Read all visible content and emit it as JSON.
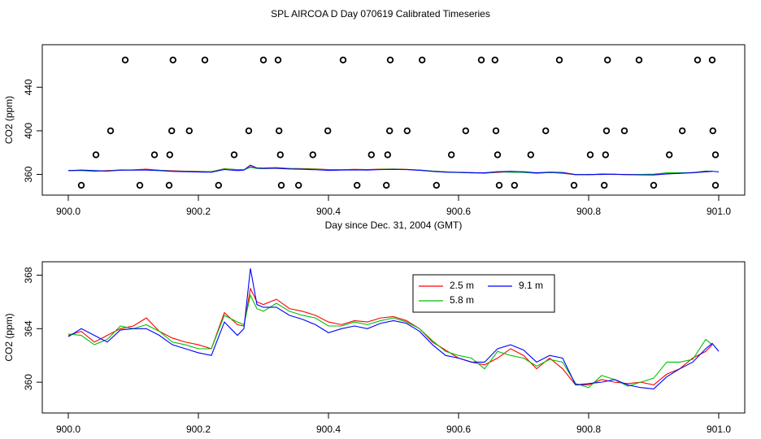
{
  "chart_data": [
    {
      "type": "line",
      "title": "SPL AIRCOA D  Day 070619  Calibrated Timeseries",
      "x_label": "Day since Dec. 31, 2004 (GMT)",
      "y_label": "CO2 (ppm)",
      "xlim": [
        899.96,
        901.04
      ],
      "ylim": [
        341,
        479
      ],
      "xticks": [
        {
          "value": 900,
          "label": "900.0"
        },
        900.2,
        900.4,
        900.6,
        900.8,
        {
          "value": 901,
          "label": "901.0"
        }
      ],
      "yticks": [
        360,
        400,
        440
      ],
      "x": [
        900.0,
        900.02,
        900.04,
        900.06,
        900.08,
        900.1,
        900.12,
        900.14,
        900.16,
        900.18,
        900.2,
        900.22,
        900.24,
        900.26,
        900.27,
        900.28,
        900.29,
        900.3,
        900.32,
        900.34,
        900.36,
        900.38,
        900.4,
        900.42,
        900.44,
        900.46,
        900.48,
        900.5,
        900.52,
        900.54,
        900.56,
        900.58,
        900.6,
        900.62,
        900.64,
        900.66,
        900.68,
        900.7,
        900.72,
        900.74,
        900.76,
        900.78,
        900.8,
        900.82,
        900.84,
        900.86,
        900.88,
        900.9,
        900.92,
        900.94,
        900.96,
        900.98,
        900.99,
        901.0
      ],
      "series": [
        {
          "name": "2.5 m",
          "color": "#ff0000",
          "values": [
            363.5,
            363.8,
            363.0,
            363.5,
            364.0,
            364.2,
            364.8,
            363.8,
            363.3,
            363.0,
            362.8,
            362.5,
            365.2,
            364.3,
            364.2,
            367.0,
            366.0,
            365.8,
            366.2,
            365.5,
            365.3,
            365.0,
            364.5,
            364.3,
            364.6,
            364.5,
            364.8,
            364.9,
            364.6,
            364.0,
            363.0,
            362.4,
            361.8,
            361.5,
            361.3,
            361.8,
            362.5,
            362.0,
            361.0,
            361.8,
            361.0,
            359.8,
            359.8,
            360.2,
            360.0,
            359.9,
            360.0,
            359.8,
            360.6,
            361.0,
            361.8,
            362.3,
            362.8,
            null
          ]
        },
        {
          "name": "5.8 m",
          "color": "#00c000",
          "values": [
            363.6,
            363.5,
            362.8,
            363.2,
            364.2,
            364.0,
            364.3,
            363.8,
            363.0,
            362.8,
            362.5,
            362.5,
            365.0,
            364.5,
            364.3,
            366.5,
            365.5,
            365.3,
            365.9,
            365.3,
            365.0,
            364.8,
            364.2,
            364.2,
            364.5,
            364.3,
            364.6,
            364.8,
            364.5,
            364.0,
            363.1,
            362.3,
            362.0,
            361.8,
            361.0,
            362.3,
            362.0,
            361.8,
            361.2,
            361.7,
            361.5,
            359.9,
            359.6,
            360.5,
            360.2,
            359.7,
            360.0,
            360.3,
            361.5,
            361.5,
            361.7,
            363.2,
            362.8,
            null
          ]
        },
        {
          "name": "9.1 m",
          "color": "#0000ff",
          "values": [
            363.4,
            364.0,
            363.5,
            363.0,
            363.9,
            364.0,
            364.0,
            363.5,
            362.8,
            362.5,
            362.2,
            362.0,
            364.5,
            363.5,
            364.0,
            368.5,
            365.8,
            365.6,
            365.6,
            365.0,
            364.7,
            364.3,
            363.7,
            364.0,
            364.2,
            364.0,
            364.4,
            364.6,
            364.4,
            363.8,
            362.8,
            362.0,
            361.8,
            361.5,
            361.5,
            362.5,
            362.8,
            362.4,
            361.5,
            362.0,
            361.8,
            359.8,
            359.9,
            360.0,
            360.2,
            359.8,
            359.6,
            359.5,
            360.4,
            361.0,
            361.5,
            362.5,
            362.9,
            362.3
          ]
        }
      ],
      "points": {
        "x": [
          900.0875,
          900.161,
          900.21,
          900.3,
          900.3225,
          900.4225,
          900.495,
          900.544,
          900.635,
          900.656,
          900.755,
          900.829,
          900.8775,
          900.9675,
          900.99,
          900.065,
          900.159,
          900.186,
          900.2775,
          900.324,
          900.399,
          900.494,
          900.521,
          900.611,
          900.6575,
          900.734,
          900.8275,
          900.855,
          900.944,
          900.991,
          900.0425,
          900.1325,
          900.156,
          900.255,
          900.326,
          900.376,
          900.466,
          900.491,
          900.589,
          900.66,
          900.711,
          900.8025,
          900.826,
          900.924,
          900.995,
          900.02,
          900.11,
          900.155,
          900.231,
          900.3275,
          900.354,
          900.444,
          900.489,
          900.566,
          900.6625,
          900.686,
          900.7775,
          900.824,
          900.9,
          900.995
        ],
        "y": [
          465,
          465,
          465,
          465,
          465,
          465,
          465,
          465,
          465,
          465,
          465,
          465,
          465,
          465,
          465,
          400,
          400,
          400,
          400,
          400,
          400,
          400,
          400,
          400,
          400,
          400,
          400,
          400,
          400,
          400,
          378,
          378,
          378,
          378,
          378,
          378,
          378,
          378,
          378,
          378,
          378,
          378,
          378,
          378,
          378,
          350,
          350,
          350,
          350,
          350,
          350,
          350,
          350,
          350,
          350,
          350,
          350,
          350,
          350,
          350
        ]
      }
    },
    {
      "type": "line",
      "x_label": "Day since Dec. 31, 2004 (GMT)",
      "y_label": "CO2 (ppm)",
      "xlim": [
        899.96,
        901.04
      ],
      "ylim": [
        357.7,
        369.0
      ],
      "xticks": [
        {
          "value": 900,
          "label": "900.0"
        },
        900.2,
        900.4,
        900.6,
        900.8,
        {
          "value": 901,
          "label": "901.0"
        }
      ],
      "yticks": [
        360,
        364,
        368
      ],
      "legend": "top-right",
      "x": [
        900.0,
        900.02,
        900.04,
        900.06,
        900.08,
        900.1,
        900.12,
        900.14,
        900.16,
        900.18,
        900.2,
        900.22,
        900.24,
        900.26,
        900.27,
        900.28,
        900.29,
        900.3,
        900.32,
        900.34,
        900.36,
        900.38,
        900.4,
        900.42,
        900.44,
        900.46,
        900.48,
        900.5,
        900.52,
        900.54,
        900.56,
        900.58,
        900.6,
        900.62,
        900.64,
        900.66,
        900.68,
        900.7,
        900.72,
        900.74,
        900.76,
        900.78,
        900.8,
        900.82,
        900.84,
        900.86,
        900.88,
        900.9,
        900.92,
        900.94,
        900.96,
        900.98,
        900.99,
        901.0
      ],
      "series": [
        {
          "name": "2.5 m",
          "color": "#ff0000",
          "values": [
            363.5,
            363.8,
            363.0,
            363.5,
            364.0,
            364.2,
            364.8,
            363.8,
            363.3,
            363.0,
            362.8,
            362.5,
            365.2,
            364.3,
            364.2,
            367.0,
            366.0,
            365.8,
            366.2,
            365.5,
            365.3,
            365.0,
            364.5,
            364.3,
            364.6,
            364.5,
            364.8,
            364.9,
            364.6,
            364.0,
            363.0,
            362.4,
            361.8,
            361.5,
            361.3,
            361.8,
            362.5,
            362.0,
            361.0,
            361.8,
            361.0,
            359.8,
            359.8,
            360.2,
            360.0,
            359.9,
            360.0,
            359.8,
            360.6,
            361.0,
            361.8,
            362.3,
            362.8,
            null
          ]
        },
        {
          "name": "5.8 m",
          "color": "#00c000",
          "values": [
            363.6,
            363.5,
            362.8,
            363.2,
            364.2,
            364.0,
            364.3,
            363.8,
            363.0,
            362.8,
            362.5,
            362.5,
            365.0,
            364.5,
            364.3,
            366.5,
            365.5,
            365.3,
            365.9,
            365.3,
            365.0,
            364.8,
            364.2,
            364.2,
            364.5,
            364.3,
            364.6,
            364.8,
            364.5,
            364.0,
            363.1,
            362.3,
            362.0,
            361.8,
            361.0,
            362.3,
            362.0,
            361.8,
            361.2,
            361.7,
            361.5,
            359.9,
            359.6,
            360.5,
            360.2,
            359.7,
            360.0,
            360.3,
            361.5,
            361.5,
            361.7,
            363.2,
            362.8,
            null
          ]
        },
        {
          "name": "9.1 m",
          "color": "#0000ff",
          "values": [
            363.4,
            364.0,
            363.5,
            363.0,
            363.9,
            364.0,
            364.0,
            363.5,
            362.8,
            362.5,
            362.2,
            362.0,
            364.5,
            363.5,
            364.0,
            368.5,
            365.8,
            365.6,
            365.6,
            365.0,
            364.7,
            364.3,
            363.7,
            364.0,
            364.2,
            364.0,
            364.4,
            364.6,
            364.4,
            363.8,
            362.8,
            362.0,
            361.8,
            361.5,
            361.5,
            362.5,
            362.8,
            362.4,
            361.5,
            362.0,
            361.8,
            359.8,
            359.9,
            360.0,
            360.2,
            359.8,
            359.6,
            359.5,
            360.4,
            361.0,
            361.5,
            362.5,
            362.9,
            362.3
          ]
        }
      ]
    }
  ]
}
